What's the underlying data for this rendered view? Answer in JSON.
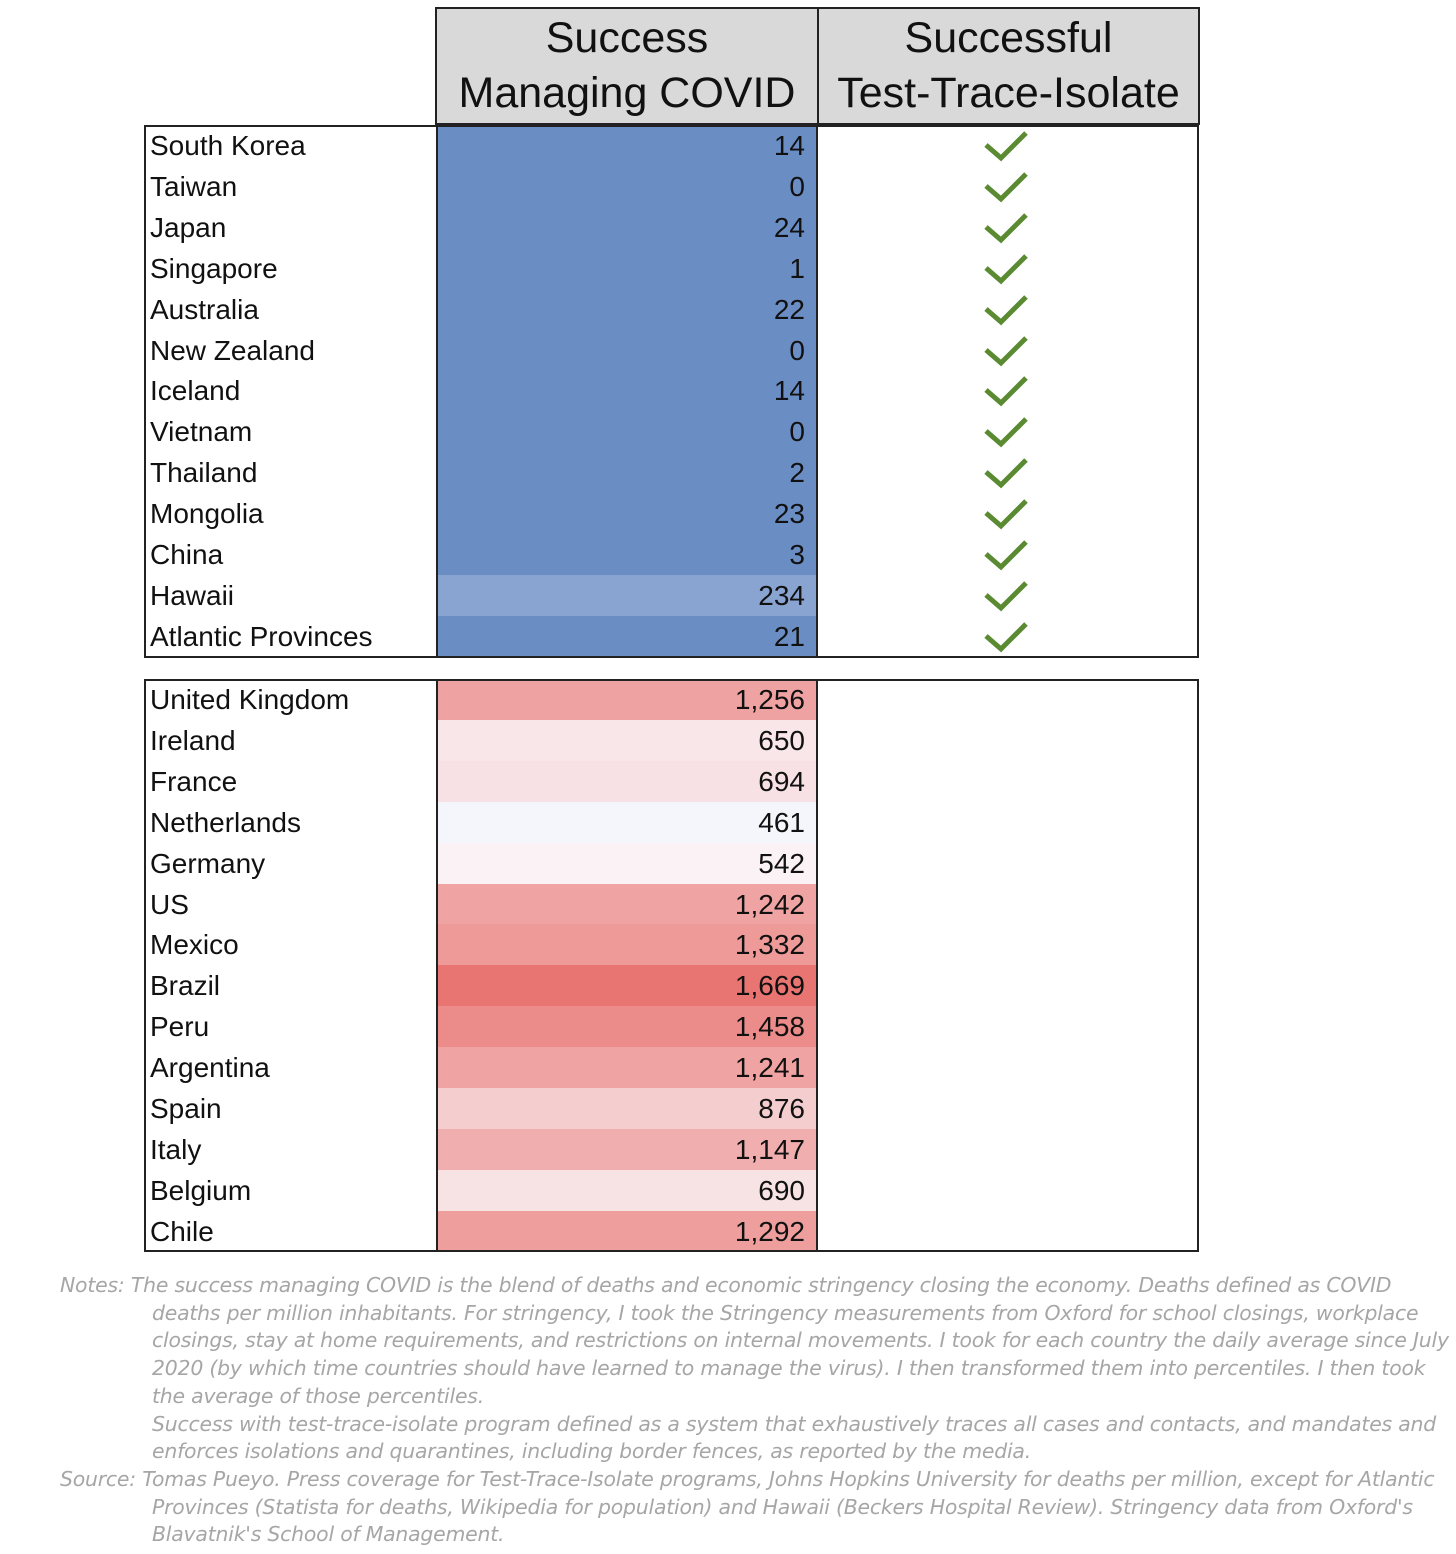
{
  "chart_data": {
    "type": "table",
    "columns": {
      "success": [
        "Success",
        "Managing COVID"
      ],
      "tti": [
        "Successful",
        "Test-Trace-Isolate"
      ]
    },
    "groups": [
      {
        "name": "",
        "tti_success": true,
        "rows": [
          {
            "country": "South Korea",
            "value": 14,
            "label": "14"
          },
          {
            "country": "Taiwan",
            "value": 0,
            "label": "0"
          },
          {
            "country": "Japan",
            "value": 24,
            "label": "24"
          },
          {
            "country": "Singapore",
            "value": 1,
            "label": "1"
          },
          {
            "country": "Australia",
            "value": 22,
            "label": "22"
          },
          {
            "country": "New Zealand",
            "value": 0,
            "label": "0"
          },
          {
            "country": "Iceland",
            "value": 14,
            "label": "14"
          },
          {
            "country": "Vietnam",
            "value": 0,
            "label": "0"
          },
          {
            "country": "Thailand",
            "value": 2,
            "label": "2"
          },
          {
            "country": "Mongolia",
            "value": 23,
            "label": "23"
          },
          {
            "country": "China",
            "value": 3,
            "label": "3"
          },
          {
            "country": "Hawaii",
            "value": 234,
            "label": "234"
          },
          {
            "country": "Atlantic Provinces",
            "value": 21,
            "label": "21"
          }
        ]
      },
      {
        "name": "",
        "tti_success": false,
        "rows": [
          {
            "country": "United Kingdom",
            "value": 1256,
            "label": "1,256"
          },
          {
            "country": "Ireland",
            "value": 650,
            "label": "650"
          },
          {
            "country": "France",
            "value": 694,
            "label": "694"
          },
          {
            "country": "Netherlands",
            "value": 461,
            "label": "461"
          },
          {
            "country": "Germany",
            "value": 542,
            "label": "542"
          },
          {
            "country": "US",
            "value": 1242,
            "label": "1,242"
          },
          {
            "country": "Mexico",
            "value": 1332,
            "label": "1,332"
          },
          {
            "country": "Brazil",
            "value": 1669,
            "label": "1,669"
          },
          {
            "country": "Peru",
            "value": 1458,
            "label": "1,458"
          },
          {
            "country": "Argentina",
            "value": 1241,
            "label": "1,241"
          },
          {
            "country": "Spain",
            "value": 876,
            "label": "876"
          },
          {
            "country": "Italy",
            "value": 1147,
            "label": "1,147"
          },
          {
            "country": "Belgium",
            "value": 690,
            "label": "690"
          },
          {
            "country": "Chile",
            "value": 1292,
            "label": "1,292"
          }
        ]
      }
    ],
    "color_scale": {
      "low": "#6a8dc4",
      "mid": "#fbfbff",
      "high": "#e87571",
      "mid_value": 461,
      "high_value": 1669
    },
    "check_color": "#5a8a32"
  },
  "notes": [
    "Notes: The success managing COVID is the blend of deaths and economic stringency closing the economy. Deaths defined as COVID deaths per million inhabitants. For stringency, I took the Stringency measurements from Oxford for school closings, workplace closings, stay at home requirements, and restrictions on internal movements. I took for each country the daily average since July 2020 (by which time countries should have learned to manage the virus). I then transformed them into percentiles. I then took the average of those percentiles.",
    "Success with test-trace-isolate program defined as a system that exhaustively traces all cases and contacts, and mandates and enforces isolations and quarantines, including border fences, as reported by the media.",
    "Source: Tomas Pueyo. Press coverage for Test-Trace-Isolate programs, Johns Hopkins University for deaths per million, except for Atlantic Provinces (Statista for deaths, Wikipedia for population) and  Hawaii (Beckers Hospital Review). Stringency data from Oxford's Blavatnik's School of Management."
  ]
}
